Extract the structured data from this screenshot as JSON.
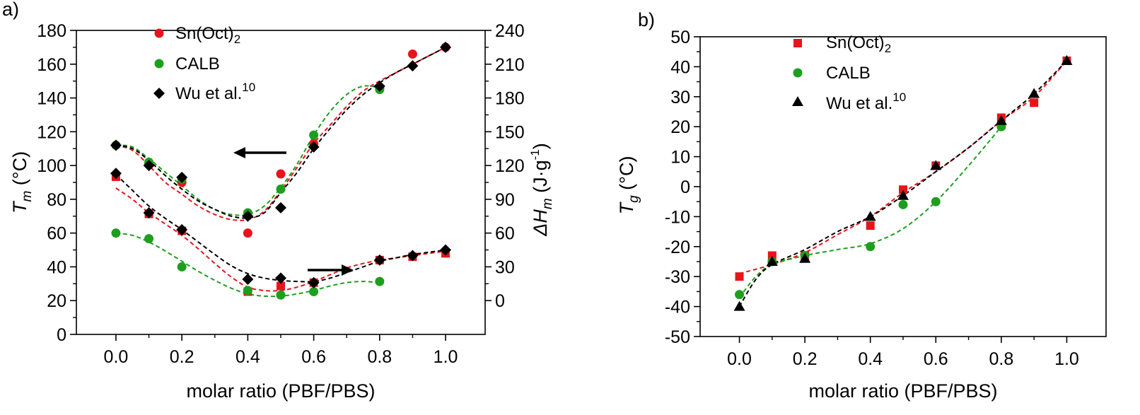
{
  "chart_data": [
    {
      "panel": "a)",
      "type": "scatter",
      "xlabel": "molar ratio (PBF/PBS)",
      "ylabel_main": "T",
      "ylabel_sub": "m",
      "ylabel_unit": " (°C)",
      "ylabel2_main": "ΔH",
      "ylabel2_sub": "m",
      "ylabel2_unit": " (J·g",
      "ylabel2_sup": "-1",
      "ylabel2_close": ")",
      "xlim": [
        -0.12,
        1.12
      ],
      "ylim": [
        0,
        180
      ],
      "ylim_right": [
        -30,
        240
      ],
      "x_ticks": [
        0.0,
        0.2,
        0.4,
        0.6,
        0.8,
        1.0
      ],
      "x_tick_labels": [
        "0.0",
        "0.2",
        "0.4",
        "0.6",
        "0.8",
        "1.0"
      ],
      "y_ticks": [
        0,
        20,
        40,
        60,
        80,
        100,
        120,
        140,
        160,
        180
      ],
      "y_tick_labels": [
        "0",
        "20",
        "40",
        "60",
        "80",
        "100",
        "120",
        "140",
        "160",
        "180"
      ],
      "y2_ticks": [
        0,
        30,
        60,
        90,
        120,
        150,
        180,
        210,
        240
      ],
      "y2_tick_labels": [
        "0",
        "30",
        "60",
        "90",
        "120",
        "150",
        "180",
        "210",
        "240"
      ],
      "legend": [
        {
          "label": "Sn(Oct)",
          "sub": "2",
          "sup": "",
          "color": "#e8141c",
          "marker": "circle"
        },
        {
          "label": "CALB",
          "sub": "",
          "sup": "",
          "color": "#1e9e1e",
          "marker": "circle"
        },
        {
          "label": "Wu et al.",
          "sub": "",
          "sup": "10",
          "color": "#000000",
          "marker": "diamond"
        }
      ],
      "annotations": [
        {
          "direction": "left",
          "points_to_axis": "Tm (left)"
        },
        {
          "direction": "right",
          "points_to_axis": "ΔHm (right)"
        }
      ],
      "series": [
        {
          "name": "Sn(Oct)2 Tm",
          "axis": "left",
          "marker": "circle",
          "color": "#e8141c",
          "x": [
            0.0,
            0.1,
            0.2,
            0.4,
            0.5,
            0.6,
            0.8,
            0.9,
            1.0
          ],
          "y": [
            112,
            101,
            90,
            60,
            95,
            113,
            146,
            166,
            170
          ]
        },
        {
          "name": "CALB Tm",
          "axis": "left",
          "marker": "circle",
          "color": "#1e9e1e",
          "x": [
            0.0,
            0.1,
            0.2,
            0.4,
            0.5,
            0.6,
            0.8
          ],
          "y": [
            112,
            102,
            92,
            72,
            86,
            118,
            145
          ]
        },
        {
          "name": "Wu et al. Tm",
          "axis": "left",
          "marker": "diamond",
          "color": "#000000",
          "x": [
            0.0,
            0.1,
            0.2,
            0.4,
            0.5,
            0.6,
            0.8,
            0.9,
            1.0
          ],
          "y": [
            112,
            100,
            93,
            70,
            75,
            111,
            147,
            159,
            170
          ]
        },
        {
          "name": "Sn(Oct)2 ΔHm",
          "axis": "right",
          "marker": "square",
          "color": "#e8141c",
          "x": [
            0.0,
            0.1,
            0.2,
            0.4,
            0.5,
            0.6,
            0.8,
            0.9,
            1.0
          ],
          "y": [
            110,
            77,
            62,
            8,
            13,
            16,
            36,
            39,
            42
          ]
        },
        {
          "name": "CALB ΔHm",
          "axis": "right",
          "marker": "circle",
          "color": "#1e9e1e",
          "x": [
            0.0,
            0.1,
            0.2,
            0.4,
            0.5,
            0.6,
            0.8
          ],
          "y": [
            60,
            55,
            30,
            9,
            5,
            8,
            17
          ]
        },
        {
          "name": "Wu et al. ΔHm",
          "axis": "right",
          "marker": "diamond",
          "color": "#000000",
          "x": [
            0.0,
            0.1,
            0.2,
            0.4,
            0.5,
            0.6,
            0.8,
            0.9,
            1.0
          ],
          "y": [
            113,
            78,
            63,
            19,
            20,
            16,
            36,
            40,
            45
          ]
        }
      ],
      "fits": [
        {
          "name": "Sn(Oct)2 Tm fit",
          "axis": "left",
          "color": "#e8141c",
          "x": [
            0.0,
            0.05,
            0.1,
            0.15,
            0.2,
            0.25,
            0.3,
            0.35,
            0.4,
            0.45,
            0.5,
            0.55,
            0.6,
            0.65,
            0.7,
            0.75,
            0.8,
            0.85,
            0.9,
            0.95,
            1.0
          ],
          "y": [
            112,
            109,
            100,
            90,
            83,
            76,
            71,
            68,
            68,
            73,
            85,
            99,
            113,
            124,
            135,
            144,
            150,
            155,
            160,
            165,
            170
          ]
        },
        {
          "name": "CALB Tm fit",
          "axis": "left",
          "color": "#1e9e1e",
          "x": [
            0.0,
            0.05,
            0.1,
            0.15,
            0.2,
            0.25,
            0.3,
            0.35,
            0.4,
            0.45,
            0.5,
            0.55,
            0.6,
            0.65,
            0.7,
            0.75,
            0.8
          ],
          "y": [
            112,
            111,
            104,
            96,
            88,
            80,
            74,
            71,
            71,
            76,
            87,
            101,
            118,
            132,
            142,
            147,
            146
          ]
        },
        {
          "name": "Wu et al. Tm fit",
          "axis": "left",
          "color": "#000000",
          "x": [
            0.0,
            0.05,
            0.1,
            0.15,
            0.2,
            0.25,
            0.3,
            0.35,
            0.4,
            0.45,
            0.5,
            0.55,
            0.6,
            0.65,
            0.7,
            0.75,
            0.8,
            0.85,
            0.9,
            0.95,
            1.0
          ],
          "y": [
            112,
            110,
            103,
            94,
            86,
            79,
            74,
            70,
            69,
            72,
            84,
            96,
            110,
            122,
            133,
            142,
            149,
            155,
            160,
            165,
            170
          ]
        },
        {
          "name": "Sn(Oct)2 ΔHm fit",
          "axis": "right",
          "color": "#e8141c",
          "x": [
            0.0,
            0.05,
            0.1,
            0.15,
            0.2,
            0.25,
            0.3,
            0.35,
            0.4,
            0.45,
            0.5,
            0.55,
            0.6,
            0.65,
            0.7,
            0.75,
            0.8,
            0.85,
            0.9,
            0.95,
            1.0
          ],
          "y": [
            100,
            90,
            78,
            68,
            58,
            46,
            33,
            21,
            12,
            9,
            9,
            12,
            17,
            23,
            29,
            33,
            36,
            38,
            40,
            42,
            44
          ]
        },
        {
          "name": "CALB ΔHm fit",
          "axis": "right",
          "color": "#1e9e1e",
          "x": [
            0.0,
            0.05,
            0.1,
            0.15,
            0.2,
            0.25,
            0.3,
            0.35,
            0.4,
            0.45,
            0.5,
            0.55,
            0.6,
            0.65,
            0.7,
            0.75,
            0.8
          ],
          "y": [
            60,
            58,
            52,
            44,
            35,
            26,
            18,
            11,
            6,
            4,
            4,
            6,
            9,
            13,
            16,
            17,
            16
          ]
        },
        {
          "name": "Wu et al. ΔHm fit",
          "axis": "right",
          "color": "#000000",
          "x": [
            0.0,
            0.05,
            0.1,
            0.15,
            0.2,
            0.25,
            0.3,
            0.35,
            0.4,
            0.45,
            0.5,
            0.55,
            0.6,
            0.65,
            0.7,
            0.75,
            0.8,
            0.85,
            0.9,
            0.95,
            1.0
          ],
          "y": [
            112,
            98,
            84,
            73,
            63,
            52,
            41,
            31,
            24,
            20,
            18,
            17,
            17,
            20,
            25,
            30,
            35,
            38,
            41,
            43,
            45
          ]
        }
      ]
    },
    {
      "panel": "b)",
      "type": "scatter",
      "xlabel": "molar ratio (PBF/PBS)",
      "ylabel_main": "T",
      "ylabel_sub": "g",
      "ylabel_unit": " (°C)",
      "xlim": [
        -0.12,
        1.12
      ],
      "ylim": [
        -50,
        50
      ],
      "x_ticks": [
        0.0,
        0.2,
        0.4,
        0.6,
        0.8,
        1.0
      ],
      "x_tick_labels": [
        "0.0",
        "0.2",
        "0.4",
        "0.6",
        "0.8",
        "1.0"
      ],
      "y_ticks": [
        -50,
        -40,
        -30,
        -20,
        -10,
        0,
        10,
        20,
        30,
        40,
        50
      ],
      "y_tick_labels": [
        "-50",
        "-40",
        "-30",
        "-20",
        "-10",
        "0",
        "10",
        "20",
        "30",
        "40",
        "50"
      ],
      "legend": [
        {
          "label": "Sn(Oct)",
          "sub": "2",
          "sup": "",
          "color": "#e8141c",
          "marker": "square"
        },
        {
          "label": "CALB",
          "sub": "",
          "sup": "",
          "color": "#1e9e1e",
          "marker": "circle"
        },
        {
          "label": "Wu et al.",
          "sub": "",
          "sup": "10",
          "color": "#000000",
          "marker": "triangle"
        }
      ],
      "series": [
        {
          "name": "Sn(Oct)2 Tg",
          "axis": "left",
          "marker": "square",
          "color": "#e8141c",
          "x": [
            0.0,
            0.1,
            0.2,
            0.4,
            0.5,
            0.6,
            0.8,
            0.9,
            1.0
          ],
          "y": [
            -30,
            -23,
            -23,
            -13,
            -1,
            7,
            23,
            28,
            42
          ]
        },
        {
          "name": "CALB Tg",
          "axis": "left",
          "marker": "circle",
          "color": "#1e9e1e",
          "x": [
            0.0,
            0.1,
            0.2,
            0.4,
            0.5,
            0.6,
            0.8
          ],
          "y": [
            -36,
            -25,
            -23,
            -20,
            -6,
            -5,
            20
          ]
        },
        {
          "name": "Wu et al. Tg",
          "axis": "left",
          "marker": "triangle",
          "color": "#000000",
          "x": [
            0.0,
            0.1,
            0.2,
            0.4,
            0.5,
            0.6,
            0.8,
            0.9,
            1.0
          ],
          "y": [
            -40,
            -25,
            -24,
            -10,
            -3,
            7,
            22,
            31,
            42
          ]
        }
      ],
      "fits": [
        {
          "name": "Sn(Oct)2 Tg fit",
          "axis": "left",
          "color": "#e8141c",
          "x": [
            0.0,
            0.1,
            0.2,
            0.3,
            0.4,
            0.5,
            0.6,
            0.7,
            0.8,
            0.9,
            1.0
          ],
          "y": [
            -29,
            -26,
            -22,
            -16,
            -10,
            -2,
            5,
            13,
            22,
            30,
            42
          ]
        },
        {
          "name": "CALB Tg fit",
          "axis": "left",
          "color": "#1e9e1e",
          "x": [
            0.0,
            0.05,
            0.1,
            0.2,
            0.3,
            0.4,
            0.5,
            0.6,
            0.7,
            0.8
          ],
          "y": [
            -37,
            -30,
            -26,
            -23,
            -21,
            -19,
            -14,
            -5,
            7,
            20
          ]
        },
        {
          "name": "Wu et al. Tg fit",
          "axis": "left",
          "color": "#000000",
          "x": [
            0.0,
            0.05,
            0.1,
            0.2,
            0.3,
            0.4,
            0.5,
            0.6,
            0.7,
            0.8,
            0.9,
            1.0
          ],
          "y": [
            -40,
            -31,
            -26,
            -21,
            -15,
            -10,
            -3,
            5,
            13,
            22,
            31,
            42
          ]
        }
      ]
    }
  ]
}
